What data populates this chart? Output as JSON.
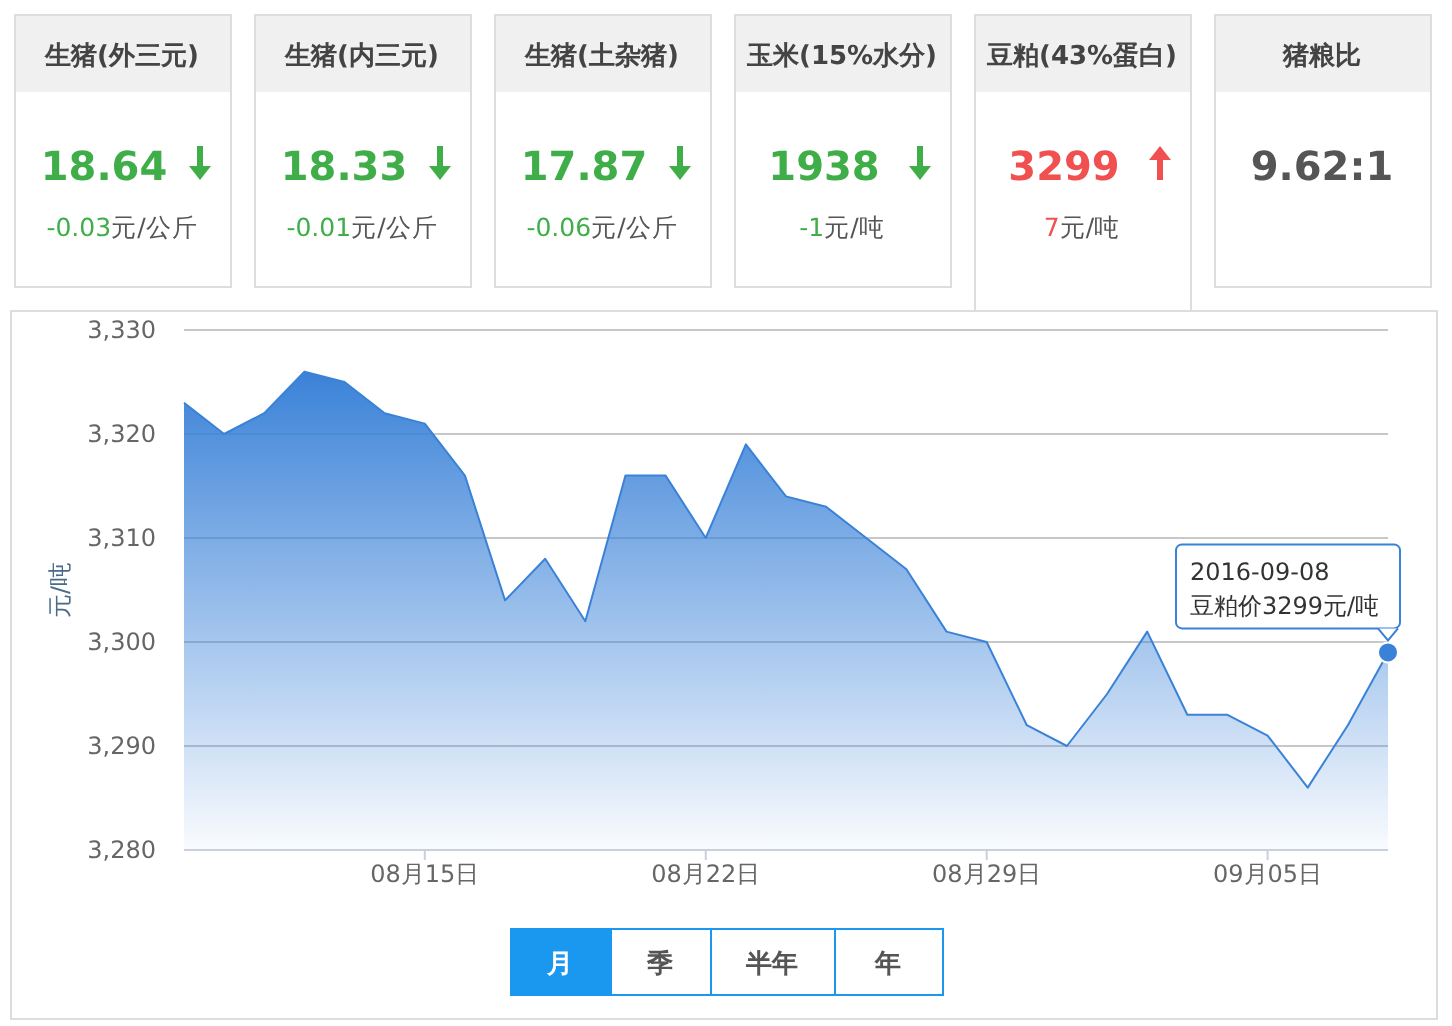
{
  "chart_data": [
    {
      "type": "other",
      "categories": [
        "生猪(外三元)",
        "生猪(内三元)",
        "生猪(土杂猪)",
        "玉米(15%水分)",
        "豆粕(43%蛋白)",
        "猪粮比"
      ],
      "values": [
        -0.03,
        -0.01,
        -0.06,
        -1,
        7,
        null
      ],
      "value_labels": [
        "-0.03",
        "-0.01",
        "-0.06",
        "-1",
        "7",
        null
      ],
      "annotations": [
        "18.64",
        "18.33",
        "17.87",
        "1938",
        "3299",
        "9.62:1",
        "元/公斤",
        "元/公斤",
        "元/公斤",
        "元/吨",
        "元/吨"
      ]
    },
    {
      "type": "area",
      "ylabel": "元/吨",
      "x": [
        "2016-08-09",
        "2016-08-10",
        "2016-08-11",
        "2016-08-12",
        "2016-08-13",
        "2016-08-14",
        "2016-08-15",
        "2016-08-16",
        "2016-08-17",
        "2016-08-18",
        "2016-08-19",
        "2016-08-20",
        "2016-08-21",
        "2016-08-22",
        "2016-08-23",
        "2016-08-24",
        "2016-08-25",
        "2016-08-26",
        "2016-08-27",
        "2016-08-28",
        "2016-08-29",
        "2016-08-30",
        "2016-08-31",
        "2016-09-01",
        "2016-09-02",
        "2016-09-03",
        "2016-09-04",
        "2016-09-05",
        "2016-09-06",
        "2016-09-07",
        "2016-09-08"
      ],
      "series": [
        {
          "color": "#3a82d8",
          "values": [
            3323,
            3320,
            3322,
            3326,
            3325,
            3322,
            3321,
            3316,
            3304,
            3308,
            3302,
            3316,
            3316,
            3310,
            3319,
            3314,
            3313,
            3310,
            3307,
            3301,
            3300,
            3292,
            3290,
            3295,
            3301,
            3293,
            3293,
            3291,
            3286,
            3292,
            3299
          ]
        }
      ],
      "xlim": [
        "2016-08-09",
        "2016-09-08"
      ],
      "xticks": [
        {
          "value": "2016-08-15",
          "label": "08月15日"
        },
        {
          "value": "2016-08-22",
          "label": "08月22日"
        },
        {
          "value": "2016-08-29",
          "label": "08月29日"
        },
        {
          "value": "2016-09-05",
          "label": "09月05日"
        }
      ],
      "ylim": [
        3280,
        3330
      ],
      "yticks": [
        {
          "value": 3280,
          "label": "3,280"
        },
        {
          "value": 3290,
          "label": "3,290"
        },
        {
          "value": 3300,
          "label": "3,300"
        },
        {
          "value": 3310,
          "label": "3,310"
        },
        {
          "value": 3320,
          "label": "3,320"
        },
        {
          "value": 3330,
          "label": "3,330"
        }
      ],
      "grid": "y",
      "annotations": [
        {
          "text": "2016-09-08\n豆粕价3299元/吨",
          "x": "2016-09-08",
          "y": 3299
        }
      ]
    },
    {
      "type": "other",
      "categories": [
        "月",
        "季",
        "半年",
        "年"
      ]
    }
  ]
}
